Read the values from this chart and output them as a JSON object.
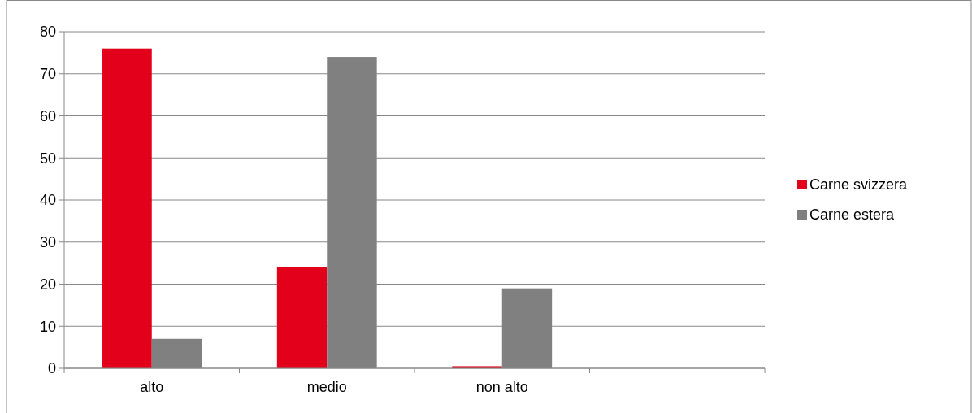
{
  "chart_data": {
    "type": "bar",
    "categories": [
      "alto",
      "medio",
      "non alto",
      null
    ],
    "series": [
      {
        "name": "Carne svizzera",
        "color": "#e2001a",
        "values": [
          76,
          24,
          0.5,
          null
        ]
      },
      {
        "name": "Carne estera",
        "color": "#808080",
        "values": [
          7,
          74,
          19,
          null
        ]
      }
    ],
    "ylim": [
      0,
      80
    ],
    "yticks": [
      0,
      10,
      20,
      30,
      40,
      50,
      60,
      70,
      80
    ],
    "grid": "y",
    "legend": "right"
  }
}
